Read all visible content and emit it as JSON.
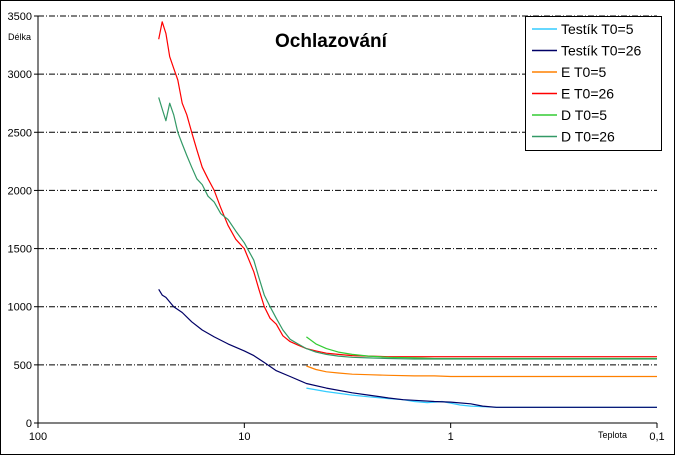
{
  "chart_data": {
    "type": "line",
    "title": "Ochlazování",
    "xlabel": "Teplota",
    "ylabel": "Délka",
    "x_scale": "log",
    "x_reversed": true,
    "xlim": [
      100,
      0.1
    ],
    "ylim": [
      0,
      3500
    ],
    "x_ticks": [
      "100",
      "10",
      "1",
      "0,1"
    ],
    "y_ticks": [
      "0",
      "500",
      "1000",
      "1500",
      "2000",
      "2500",
      "3000",
      "3500"
    ],
    "grid": "horizontal dash-dot",
    "legend_position": "top-right",
    "series": [
      {
        "name": "Testík T0=5",
        "color": "#33ccff",
        "x": [
          5,
          4,
          3,
          2.5,
          2,
          1.7,
          1.5,
          1.3,
          1.2,
          1.1,
          1,
          0.9,
          0.8,
          0.7,
          0.6,
          0.5,
          0.4,
          0.3,
          0.2,
          0.15,
          0.1
        ],
        "values": [
          300,
          270,
          240,
          225,
          210,
          200,
          185,
          175,
          180,
          185,
          170,
          155,
          145,
          140,
          135,
          135,
          135,
          135,
          135,
          135,
          135
        ]
      },
      {
        "name": "Testík T0=26",
        "color": "#000066",
        "x": [
          26,
          25,
          24,
          22,
          20,
          18,
          16,
          14,
          12,
          10,
          9,
          8,
          7,
          6,
          5,
          4,
          3,
          2.5,
          2,
          1.7,
          1.5,
          1.2,
          1,
          0.8,
          0.7,
          0.6,
          0.5,
          0.4,
          0.3,
          0.2,
          0.15,
          0.1
        ],
        "values": [
          1150,
          1100,
          1080,
          1000,
          950,
          870,
          800,
          740,
          680,
          620,
          580,
          520,
          450,
          400,
          340,
          300,
          260,
          240,
          215,
          200,
          195,
          185,
          180,
          165,
          145,
          135,
          135,
          135,
          135,
          135,
          135,
          135
        ]
      },
      {
        "name": "E T0=5",
        "color": "#ff8000",
        "x": [
          5,
          4.5,
          4,
          3.5,
          3,
          2.5,
          2,
          1.5,
          1.2,
          1,
          0.8,
          0.6,
          0.5,
          0.4,
          0.3,
          0.2,
          0.15,
          0.1
        ],
        "values": [
          490,
          460,
          440,
          430,
          420,
          415,
          410,
          405,
          405,
          400,
          400,
          400,
          400,
          400,
          400,
          400,
          400,
          400
        ]
      },
      {
        "name": "E T0=26",
        "color": "#ff0000",
        "x": [
          26,
          25,
          24,
          23,
          22,
          21,
          20,
          19,
          18,
          17,
          16,
          15,
          14,
          13,
          12,
          11,
          10,
          9,
          8.5,
          8,
          7.5,
          7,
          6.5,
          6,
          5.5,
          5,
          4.5,
          4,
          3.5,
          3,
          2.5,
          2,
          1.5,
          1.2,
          1,
          0.8,
          0.6,
          0.5,
          0.4,
          0.3,
          0.2,
          0.15,
          0.1
        ],
        "values": [
          3300,
          3450,
          3350,
          3150,
          3050,
          2950,
          2750,
          2650,
          2500,
          2350,
          2200,
          2100,
          2000,
          1850,
          1700,
          1580,
          1500,
          1300,
          1150,
          1000,
          900,
          850,
          750,
          700,
          670,
          640,
          620,
          600,
          590,
          580,
          575,
          570,
          570,
          570,
          570,
          570,
          570,
          570,
          570,
          570,
          570,
          570,
          570
        ]
      },
      {
        "name": "D T0=5",
        "color": "#33cc33",
        "x": [
          5,
          4.5,
          4,
          3.5,
          3,
          2.5,
          2,
          1.5,
          1.2,
          1,
          0.8,
          0.6,
          0.5,
          0.4,
          0.3,
          0.2,
          0.15,
          0.1
        ],
        "values": [
          740,
          680,
          640,
          610,
          590,
          575,
          565,
          560,
          555,
          555,
          555,
          555,
          555,
          555,
          555,
          555,
          555,
          555
        ]
      },
      {
        "name": "D T0=26",
        "color": "#339966",
        "x": [
          26,
          25,
          24,
          23,
          22,
          21,
          20,
          19,
          18,
          17,
          16,
          15,
          14,
          13,
          12,
          11,
          10,
          9,
          8.5,
          8,
          7.5,
          7,
          6.5,
          6,
          5.5,
          5,
          4.5,
          4,
          3.5,
          3,
          2.5,
          2,
          1.5,
          1.2,
          1,
          0.8,
          0.6,
          0.5,
          0.4,
          0.3,
          0.2,
          0.15,
          0.1
        ],
        "values": [
          2800,
          2700,
          2600,
          2750,
          2650,
          2500,
          2400,
          2300,
          2200,
          2100,
          2050,
          1950,
          1900,
          1800,
          1750,
          1650,
          1550,
          1400,
          1250,
          1100,
          1000,
          900,
          800,
          720,
          680,
          640,
          610,
          590,
          575,
          565,
          560,
          555,
          550,
          550,
          550,
          550,
          550,
          550,
          550,
          550,
          550,
          550,
          550
        ]
      }
    ]
  }
}
